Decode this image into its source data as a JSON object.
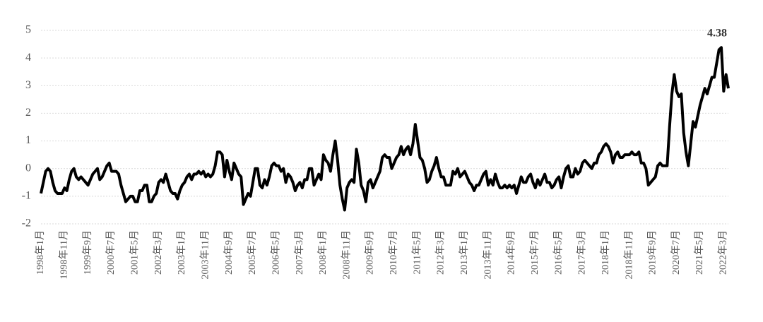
{
  "chart_data": {
    "type": "line",
    "categories": [
      "1998年1月",
      null,
      null,
      null,
      null,
      null,
      null,
      null,
      null,
      null,
      "1998年11月",
      null,
      null,
      null,
      null,
      null,
      null,
      null,
      null,
      null,
      "1999年9月",
      null,
      null,
      null,
      null,
      null,
      null,
      null,
      null,
      null,
      "2000年7月",
      null,
      null,
      null,
      null,
      null,
      null,
      null,
      null,
      null,
      "2001年5月",
      null,
      null,
      null,
      null,
      null,
      null,
      null,
      null,
      null,
      "2002年3月",
      null,
      null,
      null,
      null,
      null,
      null,
      null,
      null,
      null,
      "2003年1月",
      null,
      null,
      null,
      null,
      null,
      null,
      null,
      null,
      null,
      "2003年11月",
      null,
      null,
      null,
      null,
      null,
      null,
      null,
      null,
      null,
      "2004年9月",
      null,
      null,
      null,
      null,
      null,
      null,
      null,
      null,
      null,
      "2005年7月",
      null,
      null,
      null,
      null,
      null,
      null,
      null,
      null,
      null,
      "2006年5月",
      null,
      null,
      null,
      null,
      null,
      null,
      null,
      null,
      null,
      "2007年3月",
      null,
      null,
      null,
      null,
      null,
      null,
      null,
      null,
      null,
      "2008年1月",
      null,
      null,
      null,
      null,
      null,
      null,
      null,
      null,
      null,
      "2008年11月",
      null,
      null,
      null,
      null,
      null,
      null,
      null,
      null,
      null,
      "2009年9月",
      null,
      null,
      null,
      null,
      null,
      null,
      null,
      null,
      null,
      "2010年7月",
      null,
      null,
      null,
      null,
      null,
      null,
      null,
      null,
      null,
      "2011年5月",
      null,
      null,
      null,
      null,
      null,
      null,
      null,
      null,
      null,
      "2012年3月",
      null,
      null,
      null,
      null,
      null,
      null,
      null,
      null,
      null,
      "2013年1月",
      null,
      null,
      null,
      null,
      null,
      null,
      null,
      null,
      null,
      "2013年11月",
      null,
      null,
      null,
      null,
      null,
      null,
      null,
      null,
      null,
      "2014年9月",
      null,
      null,
      null,
      null,
      null,
      null,
      null,
      null,
      null,
      "2015年7月",
      null,
      null,
      null,
      null,
      null,
      null,
      null,
      null,
      null,
      "2016年5月",
      null,
      null,
      null,
      null,
      null,
      null,
      null,
      null,
      null,
      "2017年3月",
      null,
      null,
      null,
      null,
      null,
      null,
      null,
      null,
      null,
      "2018年1月",
      null,
      null,
      null,
      null,
      null,
      null,
      null,
      null,
      null,
      "2018年11月",
      null,
      null,
      null,
      null,
      null,
      null,
      null,
      null,
      null,
      "2019年9月",
      null,
      null,
      null,
      null,
      null,
      null,
      null,
      null,
      null,
      "2020年7月",
      null,
      null,
      null,
      null,
      null,
      null,
      null,
      null,
      null,
      "2021年5月",
      null,
      null,
      null,
      null,
      null,
      null,
      null,
      null,
      null,
      "2022年3月",
      null,
      null
    ],
    "values": [
      -0.9,
      -0.5,
      -0.1,
      0,
      -0.1,
      -0.5,
      -0.8,
      -0.9,
      -0.9,
      -0.9,
      -0.7,
      -0.8,
      -0.4,
      -0.1,
      0,
      -0.3,
      -0.4,
      -0.3,
      -0.4,
      -0.5,
      -0.6,
      -0.4,
      -0.2,
      -0.1,
      0,
      -0.4,
      -0.3,
      -0.1,
      0.1,
      0.2,
      -0.1,
      -0.1,
      -0.1,
      -0.2,
      -0.6,
      -0.9,
      -1.2,
      -1.1,
      -1.0,
      -1.0,
      -1.2,
      -1.2,
      -0.8,
      -0.8,
      -0.6,
      -0.6,
      -1.2,
      -1.2,
      -1.0,
      -0.9,
      -0.5,
      -0.4,
      -0.5,
      -0.2,
      -0.5,
      -0.8,
      -0.9,
      -0.9,
      -1.1,
      -0.8,
      -0.6,
      -0.5,
      -0.3,
      -0.2,
      -0.4,
      -0.2,
      -0.2,
      -0.1,
      -0.2,
      -0.1,
      -0.3,
      -0.2,
      -0.3,
      -0.2,
      0.1,
      0.6,
      0.6,
      0.5,
      -0.3,
      0.3,
      -0.1,
      -0.4,
      0.2,
      0,
      -0.2,
      -0.3,
      -1.3,
      -1.1,
      -0.9,
      -1.0,
      -0.5,
      0,
      0,
      -0.6,
      -0.7,
      -0.4,
      -0.6,
      -0.3,
      0.1,
      0.2,
      0.1,
      0.1,
      -0.1,
      0,
      -0.5,
      -0.2,
      -0.3,
      -0.5,
      -0.8,
      -0.6,
      -0.5,
      -0.7,
      -0.4,
      -0.4,
      0,
      0,
      -0.6,
      -0.4,
      -0.2,
      -0.4,
      0.5,
      0.3,
      0.2,
      -0.1,
      0.5,
      1.0,
      0.3,
      -0.6,
      -1.1,
      -1.5,
      -0.7,
      -0.5,
      -0.4,
      -0.5,
      0.7,
      0.2,
      -0.6,
      -0.8,
      -1.2,
      -0.5,
      -0.4,
      -0.7,
      -0.5,
      -0.3,
      -0.1,
      0.4,
      0.5,
      0.4,
      0.4,
      0,
      0.2,
      0.4,
      0.5,
      0.8,
      0.5,
      0.7,
      0.8,
      0.5,
      0.9,
      1.6,
      1.0,
      0.4,
      0.3,
      0,
      -0.5,
      -0.4,
      -0.1,
      0.1,
      0.4,
      0,
      -0.3,
      -0.3,
      -0.6,
      -0.6,
      -0.6,
      -0.1,
      -0.2,
      0,
      -0.3,
      -0.2,
      -0.1,
      -0.3,
      -0.5,
      -0.6,
      -0.8,
      -0.6,
      -0.6,
      -0.4,
      -0.2,
      -0.1,
      -0.6,
      -0.4,
      -0.6,
      -0.2,
      -0.5,
      -0.7,
      -0.7,
      -0.6,
      -0.7,
      -0.6,
      -0.7,
      -0.6,
      -0.9,
      -0.6,
      -0.3,
      -0.5,
      -0.5,
      -0.3,
      -0.2,
      -0.5,
      -0.7,
      -0.4,
      -0.6,
      -0.4,
      -0.2,
      -0.5,
      -0.5,
      -0.7,
      -0.6,
      -0.4,
      -0.3,
      -0.7,
      -0.3,
      0,
      0.1,
      -0.3,
      -0.3,
      0,
      -0.2,
      -0.1,
      0.2,
      0.3,
      0.2,
      0.1,
      0,
      0.2,
      0.2,
      0.5,
      0.6,
      0.8,
      0.9,
      0.8,
      0.6,
      0.2,
      0.5,
      0.6,
      0.4,
      0.4,
      0.5,
      0.5,
      0.5,
      0.6,
      0.5,
      0.5,
      0.6,
      0.2,
      0.2,
      0,
      -0.6,
      -0.5,
      -0.4,
      -0.3,
      0.1,
      0.2,
      0.1,
      0.1,
      0.1,
      1.5,
      2.7,
      3.4,
      2.8,
      2.6,
      2.7,
      1.3,
      0.6,
      0.1,
      0.9,
      1.7,
      1.5,
      1.9,
      2.3,
      2.6,
      2.9,
      2.7,
      3.0,
      3.3,
      3.3,
      3.8,
      4.3,
      4.38,
      2.8,
      3.4,
      2.9
    ],
    "color": "#000000",
    "ylim": [
      -2,
      5
    ],
    "yticks": [
      -2,
      -1,
      0,
      1,
      2,
      3,
      4,
      5
    ],
    "grid": true
  }
}
